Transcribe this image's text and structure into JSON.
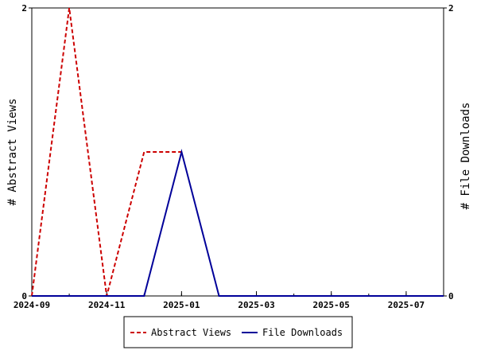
{
  "chart_data": {
    "type": "line",
    "x_label": "",
    "x_ticks": [
      "2024-09",
      "2024-11",
      "2025-01",
      "2025-03",
      "2025-05",
      "2025-07"
    ],
    "x_range": [
      "2024-09",
      "2025-08"
    ],
    "y_left": {
      "label": "# Abstract Views",
      "range": [
        0,
        2
      ],
      "ticks": [
        "0",
        "2"
      ]
    },
    "y_right": {
      "label": "# File Downloads",
      "range": [
        0,
        2
      ],
      "ticks": [
        "0",
        "2"
      ]
    },
    "grid": false,
    "legend_position": "bottom",
    "series": [
      {
        "name": "Abstract Views",
        "axis": "left",
        "color": "#cc0000",
        "style": "dashed",
        "x": [
          "2024-09",
          "2024-10",
          "2024-11",
          "2024-12",
          "2025-01"
        ],
        "y": [
          0,
          2,
          0,
          1,
          1
        ]
      },
      {
        "name": "File Downloads",
        "axis": "right",
        "color": "#000099",
        "style": "solid",
        "x": [
          "2024-09",
          "2024-10",
          "2024-11",
          "2024-12",
          "2025-01",
          "2025-02",
          "2025-03",
          "2025-04",
          "2025-05",
          "2025-06",
          "2025-07",
          "2025-08"
        ],
        "y": [
          0,
          0,
          0,
          0,
          1,
          0,
          0,
          0,
          0,
          0,
          0,
          0
        ]
      }
    ]
  }
}
